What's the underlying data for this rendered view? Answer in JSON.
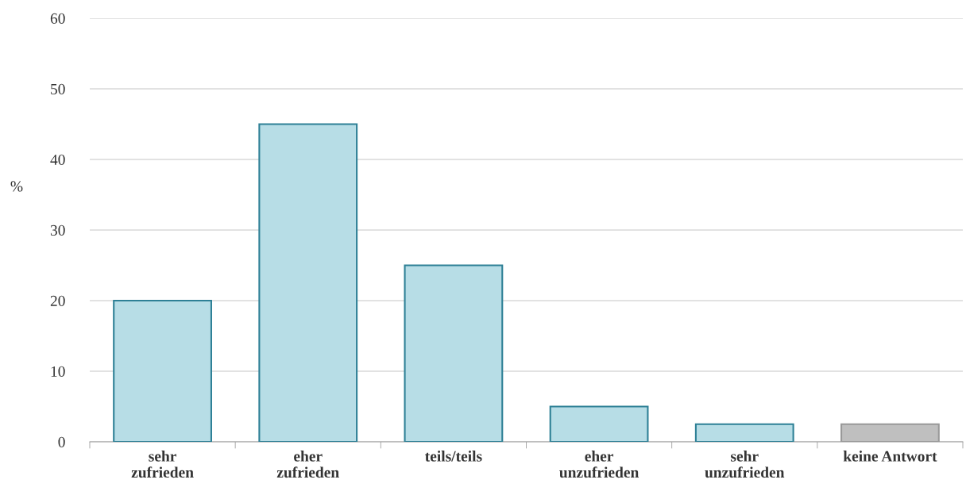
{
  "chart_data": {
    "type": "bar",
    "ylabel": "%",
    "categories": [
      "sehr\nzufrieden",
      "eher\nzufrieden",
      "teils/teils",
      "eher\nunzufrieden",
      "sehr\nunzufrieden",
      "keine Antwort"
    ],
    "values": [
      20,
      45,
      25,
      5,
      2.5,
      2.5
    ],
    "colors": [
      "#b7dde6",
      "#b7dde6",
      "#b7dde6",
      "#b7dde6",
      "#b7dde6",
      "#bfbfbf"
    ],
    "ylim": [
      0,
      60
    ],
    "yticks": [
      0,
      10,
      20,
      30,
      40,
      50,
      60
    ],
    "grid": "y"
  }
}
